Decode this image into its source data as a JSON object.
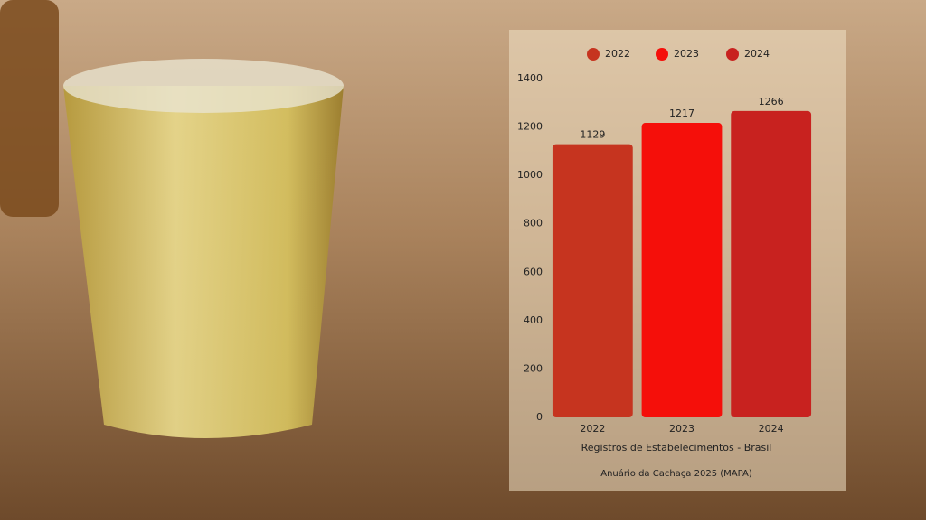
{
  "chart_data": {
    "type": "bar",
    "categories": [
      "2022",
      "2023",
      "2024"
    ],
    "values": [
      1129,
      1217,
      1266
    ],
    "colors": [
      "#c6341f",
      "#f50f0a",
      "#c8221f"
    ],
    "ylim": [
      0,
      1400
    ],
    "yticks": [
      0,
      200,
      400,
      600,
      800,
      1000,
      1200,
      1400
    ],
    "xlabel": "Registros de Estabelecimentos - Brasil",
    "caption": "Anuário da Cachaça 2025 (MAPA)",
    "legend": "top"
  }
}
